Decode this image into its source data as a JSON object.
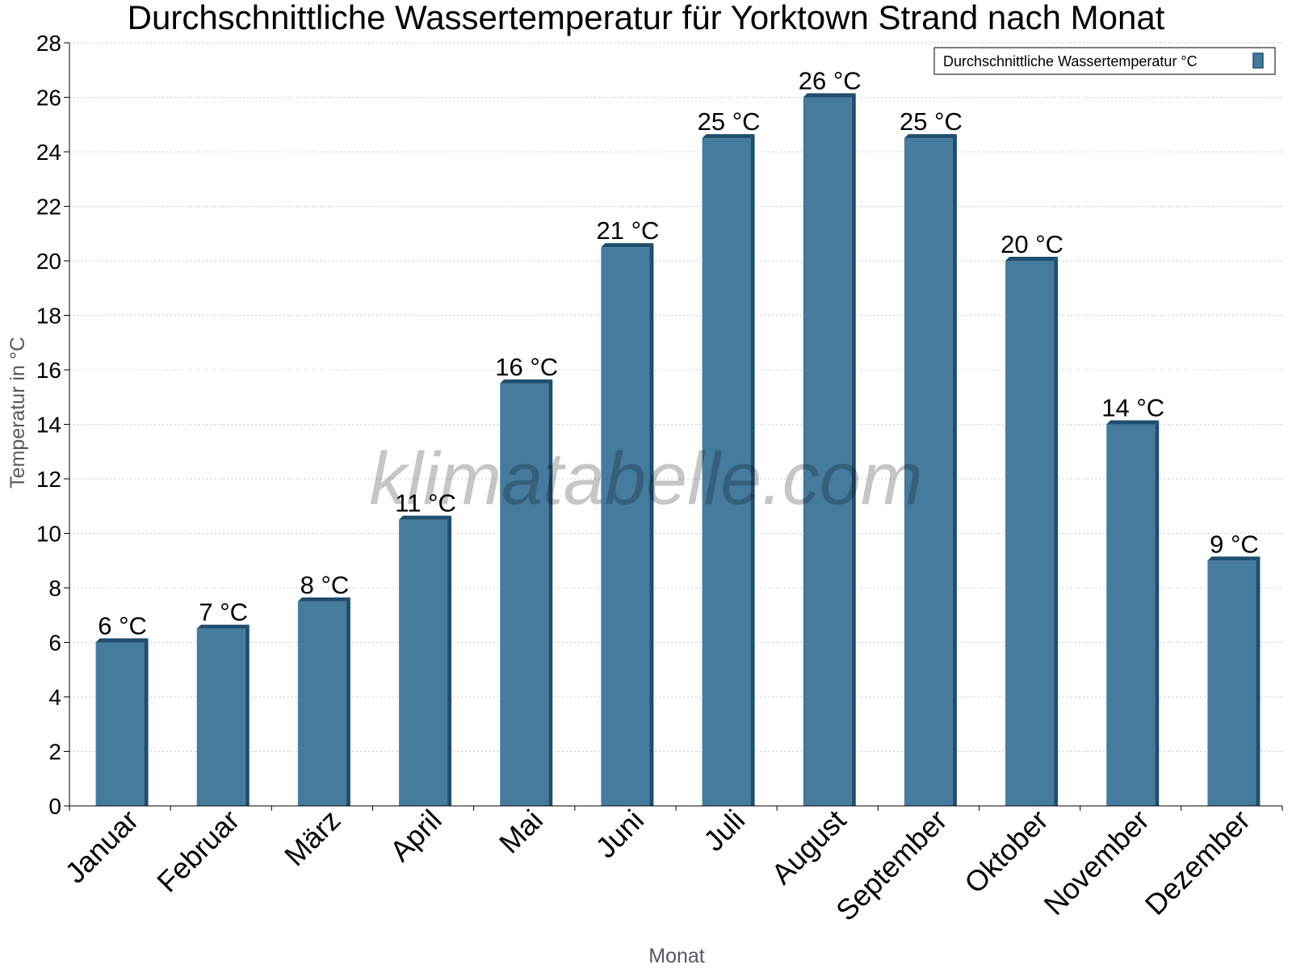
{
  "chart_data": {
    "type": "bar",
    "title": "Durchschnittliche Wassertemperatur für Yorktown Strand nach Monat",
    "xlabel": "Monat",
    "ylabel": "Temperatur in °C",
    "categories": [
      "Januar",
      "Februar",
      "März",
      "April",
      "Mai",
      "Juni",
      "Juli",
      "August",
      "September",
      "Oktober",
      "November",
      "Dezember"
    ],
    "series": [
      {
        "name": "Durchschnittliche Wassertemperatur °C",
        "values": [
          6,
          6.5,
          7.5,
          10.5,
          15.5,
          20.5,
          24.5,
          26,
          24.5,
          20,
          14,
          9
        ],
        "labels": [
          "6 °C",
          "7 °C",
          "8 °C",
          "11 °C",
          "16 °C",
          "21 °C",
          "25 °C",
          "26 °C",
          "25 °C",
          "20 °C",
          "14 °C",
          "9 °C"
        ],
        "color": "#457b9d",
        "edge_color": "#1f4e6e"
      }
    ],
    "ylim": [
      0,
      28
    ],
    "yticks": [
      0,
      2,
      4,
      6,
      8,
      10,
      12,
      14,
      16,
      18,
      20,
      22,
      24,
      26,
      28
    ],
    "grid": true,
    "legend_position": "top-right"
  },
  "watermark": "klimatabelle.com"
}
